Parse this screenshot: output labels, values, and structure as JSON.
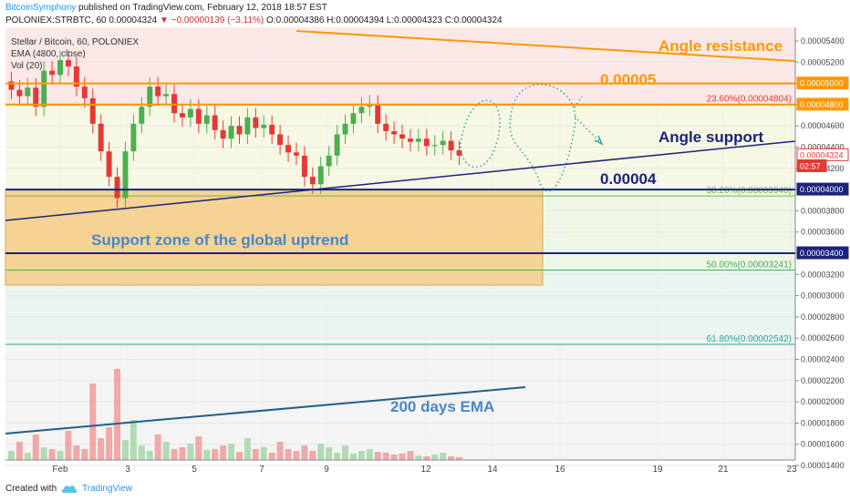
{
  "header": {
    "author": "BitcoinSymphony",
    "published": "published on TradingView.com, February 12, 2018 18:57 EST",
    "symbol": "POLONIEX:STRBTC, 60",
    "last": "0.00004324",
    "change": "▼ −0.00000139 (−3.11%)",
    "ohlc": "O:0.00004386 H:0.00004394 L:0.00004323 C:0.00004324"
  },
  "legend": {
    "title": "Stellar / Bitcoin, 60, POLONIEX",
    "ema": "EMA (4800, close)",
    "vol": "Vol (20)"
  },
  "annotations": {
    "angle_resistance": "Angle resistance",
    "level_50": "0.00005",
    "angle_support": "Angle support",
    "level_40": "0.00004",
    "support_zone": "Support zone of the global uptrend",
    "ema200": "200 days EMA"
  },
  "fib": [
    {
      "label": "23.60%(0.00004804)",
      "price": 4.804e-05,
      "color": "#e53935"
    },
    {
      "label": "38.20%(0.00003940)",
      "price": 3.94e-05,
      "color": "#7cb342"
    },
    {
      "label": "50.00%(0.00003241)",
      "price": 3.241e-05,
      "color": "#4caf50"
    },
    {
      "label": "61.80%(0.00002542)",
      "price": 2.542e-05,
      "color": "#26a69a"
    }
  ],
  "price_tags": [
    {
      "text": "0.00005000",
      "price": 5e-05,
      "bg": "#ff9800",
      "fg": "#ffffff"
    },
    {
      "text": "0.00004800",
      "price": 4.8e-05,
      "bg": "#ff9800",
      "fg": "#ffffff"
    },
    {
      "text": "0.00004324",
      "price": 4.324e-05,
      "bg": "#ffffff",
      "fg": "#e53935"
    },
    {
      "text": "02:57",
      "price": 4.22e-05,
      "bg": "#e53935",
      "fg": "#ffffff"
    },
    {
      "text": "0.00004000",
      "price": 4e-05,
      "bg": "#1a237e",
      "fg": "#ffffff"
    },
    {
      "text": "0.00003400",
      "price": 3.4e-05,
      "bg": "#1a237e",
      "fg": "#ffffff"
    }
  ],
  "footer": {
    "created": "Created with",
    "tradingview": "TradingView"
  },
  "colors": {
    "orange": "#ff9800",
    "navy": "#1a237e",
    "blue_text": "#1e3fae",
    "zone": "#f5c77a",
    "ema": "#1f5f8b",
    "up": "#4caf50",
    "down": "#e53935"
  },
  "chart_data": {
    "type": "candlestick",
    "y_axis_ticks": [
      "0.00005400",
      "0.00005200",
      "0.00005000",
      "0.00004800",
      "0.00004600",
      "0.00004400",
      "0.00004200",
      "0.00004000",
      "0.00003800",
      "0.00003600",
      "0.00003400",
      "0.00003200",
      "0.00003000",
      "0.00002800",
      "0.00002600",
      "0.00002400",
      "0.00002200",
      "0.00002000",
      "0.00001800",
      "0.00001600",
      "0.00001400"
    ],
    "x_axis_labels": [
      "Feb",
      "3",
      "5",
      "7",
      "9",
      "12",
      "14",
      "16",
      "19",
      "21",
      "23"
    ],
    "price_close": [
      4.94e-05,
      4.88e-05,
      4.96e-05,
      4.78e-05,
      5.12e-05,
      5.08e-05,
      5.22e-05,
      5.16e-05,
      4.97e-05,
      4.86e-05,
      4.62e-05,
      4.36e-05,
      4.12e-05,
      3.92e-05,
      4.36e-05,
      4.62e-05,
      4.78e-05,
      4.97e-05,
      4.88e-05,
      4.9e-05,
      4.72e-05,
      4.68e-05,
      4.76e-05,
      4.62e-05,
      4.7e-05,
      4.56e-05,
      4.48e-05,
      4.6e-05,
      4.52e-05,
      4.68e-05,
      4.58e-05,
      4.61e-05,
      4.52e-05,
      4.42e-05,
      4.35e-05,
      4.32e-05,
      4.12e-05,
      4.05e-05,
      4.22e-05,
      4.32e-05,
      4.52e-05,
      4.62e-05,
      4.72e-05,
      4.78e-05,
      4.8e-05,
      4.62e-05,
      4.55e-05,
      4.52e-05,
      4.48e-05,
      4.45e-05,
      4.48e-05,
      4.41e-05,
      4.42e-05,
      4.46e-05,
      4.37e-05,
      4.32e-05
    ],
    "volume": [
      25,
      50,
      20,
      70,
      35,
      30,
      25,
      80,
      40,
      30,
      210,
      60,
      90,
      250,
      55,
      110,
      40,
      25,
      70,
      50,
      30,
      35,
      45,
      65,
      28,
      30,
      40,
      45,
      22,
      60,
      30,
      35,
      20,
      50,
      30,
      25,
      40,
      25,
      45,
      35,
      20,
      40,
      18,
      25,
      30,
      22,
      20,
      15,
      18,
      25,
      12,
      10,
      15,
      20,
      10,
      8
    ],
    "ema200_line": {
      "label": "200 days EMA",
      "start": 1.62e-05,
      "end": 2.07e-05
    },
    "horizontal_levels": [
      5e-05,
      4.8e-05,
      4e-05,
      3.4e-05
    ]
  }
}
